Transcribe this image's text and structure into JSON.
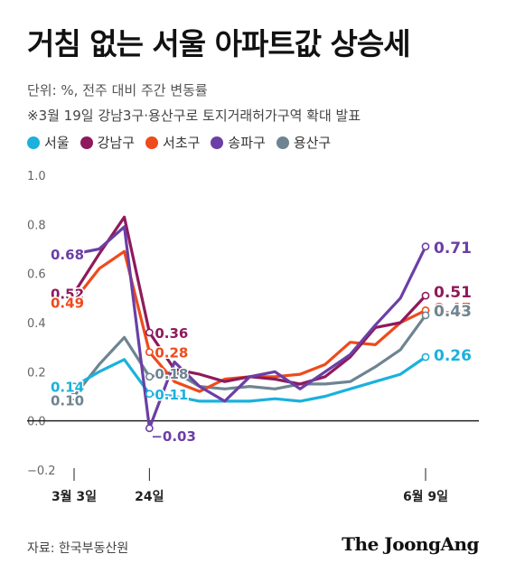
{
  "title": "거침 없는 서울 아파트값 상승세",
  "unit_note": "단위: %, 전주 대비 주간 변동률",
  "event_note": "※3월 19일 강남3구·용산구로 토지거래허가구역 확대 발표",
  "source": "자료: 한국부동산원",
  "brand": "The JoongAng",
  "chart_data": {
    "type": "line",
    "title": "거침 없는 서울 아파트값 상승세",
    "ylim": [
      -0.2,
      1.0
    ],
    "y_ticks": [
      "1.0",
      "0.8",
      "0.6",
      "0.4",
      "0.2",
      "0.0",
      "−0.2"
    ],
    "y_tick_values": [
      1.0,
      0.8,
      0.6,
      0.4,
      0.2,
      0.0,
      -0.2
    ],
    "x_tick_labels": [
      {
        "index": 0,
        "label": "3월 3일"
      },
      {
        "index": 3,
        "label": "24일"
      },
      {
        "index": 14,
        "label": "6월 9일"
      }
    ],
    "x_count": 15,
    "series": [
      {
        "name": "서울",
        "color": "#1bb1dc",
        "values": [
          0.14,
          0.2,
          0.25,
          0.11,
          0.1,
          0.08,
          0.08,
          0.08,
          0.09,
          0.08,
          0.1,
          0.13,
          0.16,
          0.19,
          0.26
        ]
      },
      {
        "name": "강남구",
        "color": "#8e1a5c",
        "values": [
          0.52,
          0.68,
          0.83,
          0.36,
          0.21,
          0.19,
          0.16,
          0.18,
          0.17,
          0.15,
          0.18,
          0.26,
          0.38,
          0.4,
          0.51
        ]
      },
      {
        "name": "서초구",
        "color": "#ef4a1c",
        "values": [
          0.49,
          0.62,
          0.69,
          0.28,
          0.16,
          0.12,
          0.17,
          0.18,
          0.18,
          0.19,
          0.23,
          0.32,
          0.31,
          0.4,
          0.45
        ]
      },
      {
        "name": "송파구",
        "color": "#6b3fa5",
        "values": [
          0.68,
          0.7,
          0.79,
          -0.03,
          0.24,
          0.14,
          0.08,
          0.18,
          0.2,
          0.13,
          0.2,
          0.27,
          0.39,
          0.5,
          0.71
        ]
      },
      {
        "name": "용산구",
        "color": "#6e8491",
        "values": [
          0.1,
          0.23,
          0.34,
          0.18,
          0.2,
          0.14,
          0.13,
          0.14,
          0.13,
          0.15,
          0.15,
          0.16,
          0.22,
          0.29,
          0.43
        ]
      }
    ],
    "start_labels": [
      {
        "series": 3,
        "text": "0.68",
        "color": "#6b3fa5"
      },
      {
        "series": 1,
        "text": "0.52",
        "color": "#8e1a5c"
      },
      {
        "series": 2,
        "text": "0.49",
        "color": "#ef4a1c"
      },
      {
        "series": 0,
        "text": "0.14",
        "color": "#1bb1dc"
      },
      {
        "series": 4,
        "text": "0.10",
        "color": "#6e8491"
      }
    ],
    "mid_labels": [
      {
        "series": 1,
        "text": "0.36",
        "color": "#8e1a5c"
      },
      {
        "series": 2,
        "text": "0.28",
        "color": "#ef4a1c"
      },
      {
        "series": 4,
        "text": "0.18",
        "color": "#6e8491"
      },
      {
        "series": 0,
        "text": "0.11",
        "color": "#1bb1dc"
      },
      {
        "series": 3,
        "text": "−0.03",
        "color": "#6b3fa5"
      }
    ],
    "end_labels": [
      {
        "series": 3,
        "text": "0.71",
        "color": "#6b3fa5"
      },
      {
        "series": 1,
        "text": "0.51",
        "color": "#8e1a5c"
      },
      {
        "series": 2,
        "text": "0.45",
        "color": "#ef4a1c"
      },
      {
        "series": 4,
        "text": "0.43",
        "color": "#6e8491"
      },
      {
        "series": 0,
        "text": "0.26",
        "color": "#1bb1dc"
      }
    ]
  }
}
